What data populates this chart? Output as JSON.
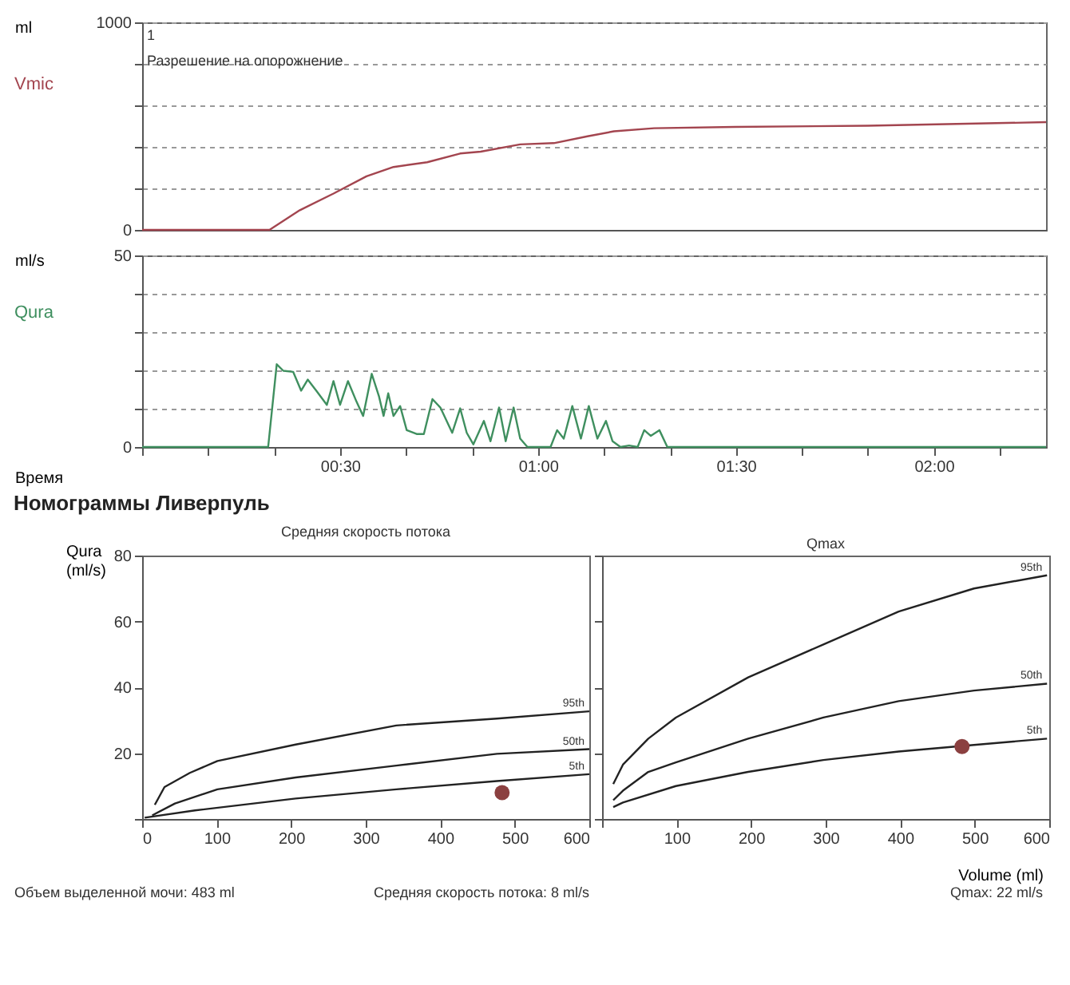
{
  "chart_data": [
    {
      "type": "line",
      "ylabel": "ml",
      "xlim": [
        0,
        137
      ],
      "ylim": [
        0,
        1000
      ],
      "yticks": [
        0,
        {
          "value": 200,
          "label": null
        },
        {
          "value": 400,
          "label": null
        },
        {
          "value": 600,
          "label": null
        },
        {
          "value": 800,
          "label": null
        },
        1000
      ],
      "grid": "y",
      "tick_labels": "y",
      "annotations": [
        "1",
        "Разрешение на опорожнение"
      ],
      "series": [
        {
          "name": "Vmic",
          "color": "#a3454f",
          "x": [
            0,
            19.3,
            23.9,
            29.0,
            34.0,
            38.1,
            43.2,
            48.2,
            51.3,
            57.3,
            62.4,
            67.5,
            71.5,
            77.6,
            89.8,
            110,
            137
          ],
          "values": [
            0,
            0,
            95,
            175,
            258,
            303,
            326,
            368,
            377,
            412,
            418,
            451,
            475,
            490,
            496,
            502,
            519
          ]
        }
      ]
    },
    {
      "type": "line",
      "ylabel": "ml/s",
      "xlabel": "Время",
      "xlim": [
        0,
        137
      ],
      "ylim": [
        0,
        50
      ],
      "yticks": [
        0,
        {
          "value": 10,
          "label": null
        },
        {
          "value": 20,
          "label": null
        },
        {
          "value": 30,
          "label": null
        },
        {
          "value": 40,
          "label": null
        },
        50
      ],
      "xticks": [
        {
          "value": 0,
          "label": null
        },
        {
          "value": 10,
          "label": null
        },
        {
          "value": 20,
          "label": null
        },
        {
          "value": 30,
          "label": "00:30"
        },
        {
          "value": 40,
          "label": null
        },
        {
          "value": 50,
          "label": null
        },
        {
          "value": 60,
          "label": "01:00"
        },
        {
          "value": 70,
          "label": null
        },
        {
          "value": 80,
          "label": null
        },
        {
          "value": 90,
          "label": "01:30"
        },
        {
          "value": 100,
          "label": null
        },
        {
          "value": 110,
          "label": null
        },
        {
          "value": 120,
          "label": "02:00"
        },
        {
          "value": 130,
          "label": null
        }
      ],
      "grid": "y",
      "series": [
        {
          "name": "Qura",
          "color": "#3f8f5f",
          "x": [
            0,
            19.1,
            20.4,
            21.4,
            22.9,
            24.1,
            25.1,
            26.4,
            28.0,
            29.0,
            30.0,
            31.2,
            32.5,
            33.5,
            34.8,
            35.9,
            36.6,
            37.3,
            38.1,
            39.1,
            40.1,
            41.6,
            42.7,
            44.0,
            45.2,
            47.0,
            48.2,
            49.2,
            50.2,
            51.8,
            52.8,
            54.1,
            55.1,
            56.3,
            57.3,
            58.4,
            61.9,
            62.9,
            63.9,
            65.2,
            66.5,
            67.7,
            69.0,
            70.3,
            71.3,
            72.5,
            73.8,
            75.1,
            76.1,
            77.1,
            78.4,
            79.6,
            137
          ],
          "values": [
            0,
            0,
            21.6,
            19.9,
            19.6,
            14.7,
            17.6,
            14.7,
            11.0,
            17.2,
            11.0,
            17.2,
            11.8,
            8.1,
            19.1,
            13.2,
            8.1,
            14.0,
            8.1,
            10.7,
            4.4,
            3.4,
            3.4,
            12.5,
            10.3,
            3.7,
            10.1,
            3.7,
            0.7,
            6.8,
            1.5,
            10.3,
            1.5,
            10.3,
            2.2,
            0,
            0,
            4.4,
            2.2,
            10.7,
            2.2,
            10.7,
            2.2,
            6.8,
            1.5,
            0,
            0.4,
            0,
            4.4,
            2.9,
            4.4,
            0,
            0
          ]
        }
      ]
    },
    {
      "type": "line",
      "title": "Номограммы Ливерпуль",
      "subtitle": "Средняя скорость потока",
      "ylabel": "Qura (ml/s)",
      "xlim": [
        0,
        600
      ],
      "ylim": [
        0,
        80
      ],
      "xticks": [
        0,
        100,
        200,
        300,
        400,
        500,
        600
      ],
      "yticks": [
        {
          "value": 0,
          "label": null
        },
        20,
        40,
        60,
        80
      ],
      "annotations": [
        "Объем выделенной мочи: 483 ml",
        "Средняя скорость потока: 8 ml/s"
      ],
      "series": [
        {
          "name": "95th",
          "color": "#222222",
          "x": [
            17,
            30,
            64,
            101,
            206,
            341,
            476,
            600
          ],
          "values": [
            4.3,
            9.7,
            14,
            17.6,
            22.6,
            28.4,
            30.5,
            32.7
          ]
        },
        {
          "name": "50th",
          "color": "#222222",
          "x": [
            13.5,
            44,
            101,
            206,
            341,
            476,
            600
          ],
          "values": [
            1.1,
            4.7,
            9.0,
            12.6,
            16.2,
            19.8,
            21.2
          ]
        },
        {
          "name": "5th",
          "color": "#222222",
          "x": [
            3.4,
            71,
            206,
            341,
            476,
            600
          ],
          "values": [
            0.4,
            2.6,
            6.2,
            9.0,
            11.5,
            13.6
          ]
        },
        {
          "type": "scatter",
          "color": "#8b4040",
          "marker": "circle",
          "x": [
            483
          ],
          "values": [
            8
          ]
        }
      ]
    },
    {
      "type": "line",
      "title": "Qmax",
      "xlabel": "Volume (ml)",
      "xlim": [
        0,
        600
      ],
      "ylim": [
        0,
        80
      ],
      "xticks": [
        {
          "value": 0,
          "label": null
        },
        100,
        200,
        300,
        400,
        500,
        600
      ],
      "yticks": [
        0,
        20,
        40,
        60,
        80
      ],
      "tick_labels": "x",
      "annotations": [
        "Qmax: 22 ml/s"
      ],
      "series": [
        {
          "name": "95th",
          "color": "#222222",
          "x": [
            15,
            28,
            62,
            99,
            196,
            297,
            398,
            499,
            597
          ],
          "values": [
            10.6,
            16.5,
            24.4,
            30.8,
            43,
            53,
            63,
            70,
            74
          ]
        },
        {
          "name": "50th",
          "color": "#222222",
          "x": [
            15,
            28,
            62,
            99,
            196,
            297,
            398,
            499,
            597
          ],
          "values": [
            5.7,
            8.6,
            14.3,
            17.2,
            24.4,
            30.8,
            35.8,
            39,
            41.1
          ]
        },
        {
          "name": "5th",
          "color": "#222222",
          "x": [
            15,
            28,
            99,
            196,
            297,
            398,
            499,
            597
          ],
          "values": [
            3.6,
            5.0,
            10,
            14.3,
            17.9,
            20.5,
            22.5,
            24.4
          ]
        },
        {
          "type": "scatter",
          "color": "#8b4040",
          "marker": "circle",
          "x": [
            483
          ],
          "values": [
            22
          ]
        }
      ]
    }
  ]
}
